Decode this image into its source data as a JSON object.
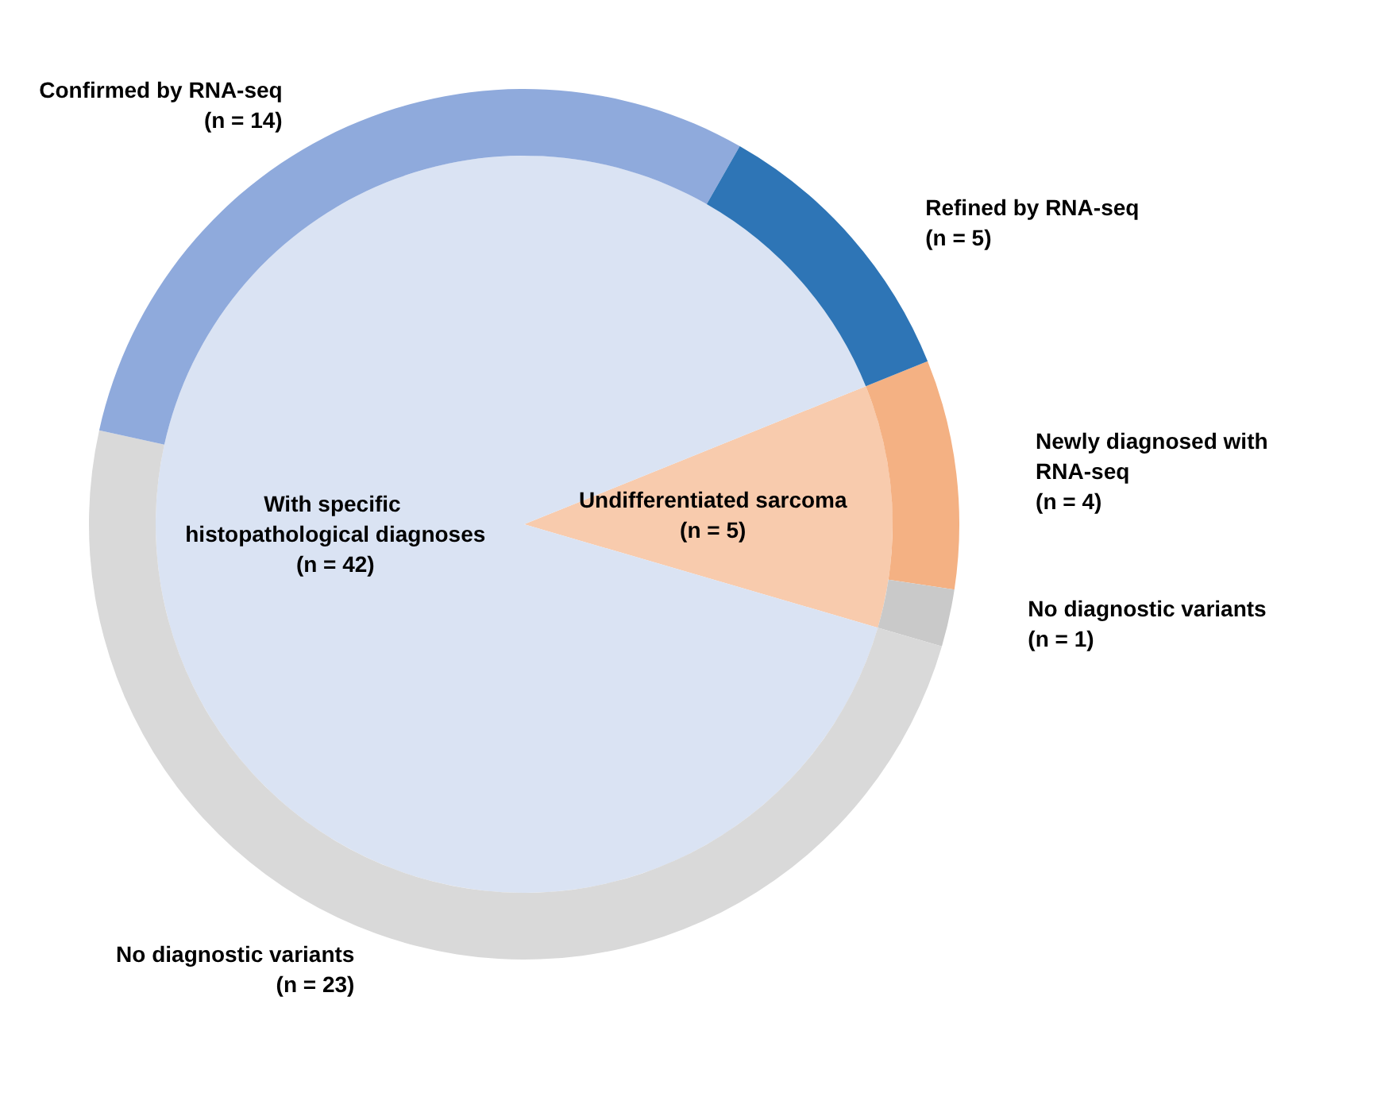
{
  "chart_data": [
    {
      "type": "pie",
      "categories": [
        "Undifferentiated sarcoma",
        "With specific histopathological diagnoses"
      ],
      "values": [
        5,
        42
      ],
      "colors": [
        "#f8cbad",
        "#dae3f3"
      ],
      "value_labels": [
        "(n = 5)",
        "(n = 42)"
      ]
    },
    {
      "type": "donut",
      "categories": [
        "Newly diagnosed with RNA-seq",
        "No diagnostic variants",
        "No diagnostic variants",
        "Confirmed by RNA-seq",
        "Refined by RNA-seq"
      ],
      "values": [
        4,
        1,
        23,
        14,
        5
      ],
      "colors": [
        "#f4b183",
        "#c9c9c9",
        "#d9d9d9",
        "#8faadc",
        "#2e75b6"
      ],
      "value_labels": [
        "(n = 4)",
        "(n = 1)",
        "(n = 23)",
        "(n = 14)",
        "(n = 5)"
      ]
    }
  ]
}
